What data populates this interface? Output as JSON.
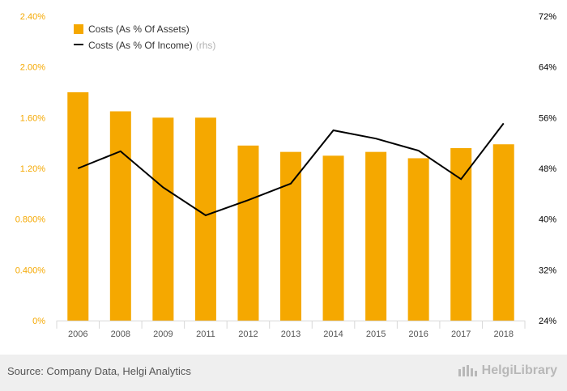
{
  "chart_data": {
    "type": "bar+line",
    "categories": [
      "2006",
      "2008",
      "2009",
      "2011",
      "2012",
      "2013",
      "2014",
      "2015",
      "2016",
      "2017",
      "2018"
    ],
    "series": [
      {
        "name": "Costs (As % Of Assets)",
        "type": "bar",
        "axis": "left",
        "color": "#f5a800",
        "values": [
          1.8,
          1.65,
          1.6,
          1.6,
          1.38,
          1.33,
          1.3,
          1.33,
          1.28,
          1.36,
          1.39
        ]
      },
      {
        "name": "Costs (As % Of Income)",
        "legend_note": "(rhs)",
        "type": "line",
        "axis": "right",
        "color": "#000000",
        "values": [
          48.0,
          50.7,
          45.0,
          40.6,
          43.0,
          45.6,
          54.0,
          52.7,
          50.8,
          46.3,
          55.1
        ]
      }
    ],
    "left_axis": {
      "ticks": [
        "0%",
        "0.400%",
        "0.800%",
        "1.20%",
        "1.60%",
        "2.00%",
        "2.40%"
      ],
      "tick_values": [
        0,
        0.4,
        0.8,
        1.2,
        1.6,
        2.0,
        2.4
      ],
      "ylim": [
        0,
        2.4
      ],
      "color": "#f5a800"
    },
    "right_axis": {
      "ticks": [
        "24%",
        "32%",
        "40%",
        "48%",
        "56%",
        "64%",
        "72%"
      ],
      "tick_values": [
        24,
        32,
        40,
        48,
        56,
        64,
        72
      ],
      "ylim": [
        24,
        72
      ],
      "color": "#000000"
    },
    "legend_position": "top-left",
    "grid": false
  },
  "footer": {
    "source": "Source: Company Data, Helgi Analytics",
    "brand": "HelgiLibrary",
    "brand_icon": "helgi-logo-icon"
  }
}
